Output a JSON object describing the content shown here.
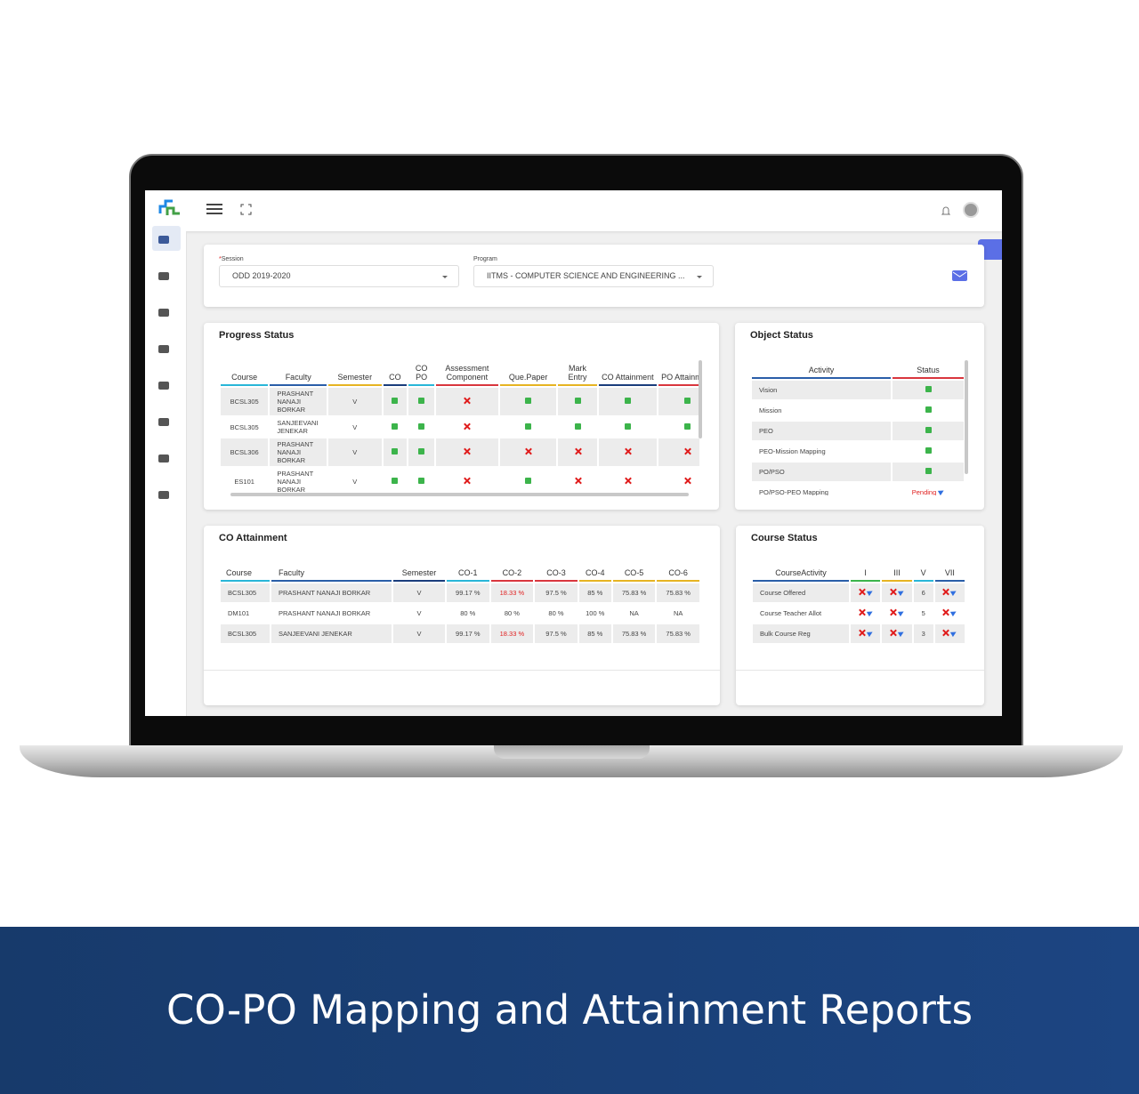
{
  "session": {
    "label": "Session",
    "value": "ODD 2019-2020"
  },
  "program": {
    "label": "Program",
    "value": "IITMS - COMPUTER SCIENCE AND ENGINEERING ..."
  },
  "progress_status": {
    "title": "Progress Status",
    "headers": [
      "Course",
      "Faculty",
      "Semester",
      "CO",
      "CO PO",
      "Assessment Component",
      "Que.Paper",
      "Mark Entry",
      "CO Attainment",
      "PO Attainment"
    ],
    "rows": [
      [
        "BCSL305",
        "PRASHANT NANAJI BORKAR",
        "V"
      ],
      [
        "BCSL305",
        "SANJEEVANI JENEKAR",
        "V"
      ],
      [
        "BCSL306",
        "PRASHANT NANAJI BORKAR",
        "V"
      ],
      [
        "ES101",
        "PRASHANT NANAJI BORKAR",
        "V"
      ]
    ]
  },
  "object_status": {
    "title": "Object Status",
    "headers": [
      "Activity",
      "Status"
    ],
    "rows": [
      "Vision",
      "Mission",
      "PEO",
      "PEO-Mission Mapping",
      "PO/PSO",
      "PO/PSO-PEO Mapping"
    ],
    "pending": "Pending"
  },
  "co_attainment": {
    "title": "CO Attainment",
    "headers": [
      "Course",
      "Faculty",
      "Semester",
      "CO-1",
      "CO-2",
      "CO-3",
      "CO-4",
      "CO-5",
      "CO-6"
    ],
    "rows": [
      [
        "BCSL305",
        "PRASHANT NANAJI BORKAR",
        "V",
        "99.17 %",
        "18.33 %",
        "97.5 %",
        "85 %",
        "75.83 %",
        "75.83 %"
      ],
      [
        "DM101",
        "PRASHANT NANAJI BORKAR",
        "V",
        "80 %",
        "80 %",
        "80 %",
        "100 %",
        "NA",
        "NA"
      ],
      [
        "BCSL305",
        "SANJEEVANI JENEKAR",
        "V",
        "99.17 %",
        "18.33 %",
        "97.5 %",
        "85 %",
        "75.83 %",
        "75.83 %"
      ]
    ]
  },
  "course_status": {
    "title": "Course Status",
    "headers": [
      "CourseActivity",
      "I",
      "III",
      "V",
      "VII"
    ],
    "rows": [
      [
        "Course Offered",
        "6"
      ],
      [
        "Course Teacher Allot",
        "5"
      ],
      [
        "Bulk Course Reg",
        "3"
      ]
    ]
  },
  "banner": {
    "title": "CO-PO Mapping and Attainment Reports"
  }
}
